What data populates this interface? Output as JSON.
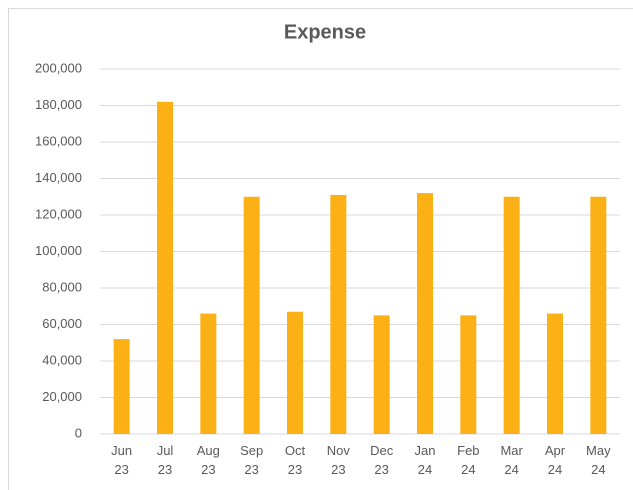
{
  "chart_data": {
    "type": "bar",
    "title": "Expense",
    "categories": [
      "Jun 23",
      "Jul 23",
      "Aug 23",
      "Sep 23",
      "Oct 23",
      "Nov 23",
      "Dec 23",
      "Jan 24",
      "Feb 24",
      "Mar 24",
      "Apr 24",
      "May 24"
    ],
    "values": [
      52000,
      182000,
      66000,
      130000,
      67000,
      131000,
      65000,
      132000,
      65000,
      130000,
      66000,
      130000
    ],
    "color": "#fbb116",
    "ylim": [
      0,
      200000
    ],
    "yticks": [
      0,
      {
        "value": 20000,
        "label": "20,000"
      },
      {
        "value": 40000,
        "label": "40,000"
      },
      {
        "value": 60000,
        "label": "60,000"
      },
      {
        "value": 80000,
        "label": "80,000"
      },
      {
        "value": 100000,
        "label": "100,000"
      },
      {
        "value": 120000,
        "label": "120,000"
      },
      {
        "value": 140000,
        "label": "140,000"
      },
      {
        "value": 160000,
        "label": "160,000"
      },
      {
        "value": 180000,
        "label": "180,000"
      },
      {
        "value": 200000,
        "label": "200,000"
      }
    ],
    "grid": true
  }
}
